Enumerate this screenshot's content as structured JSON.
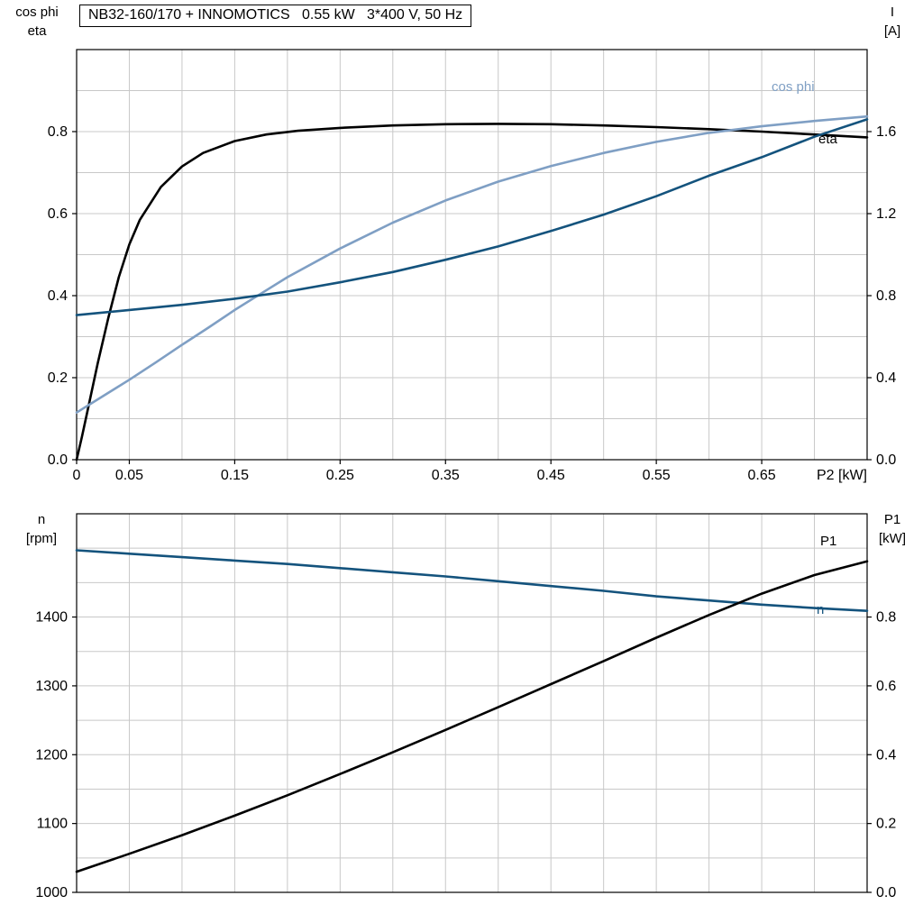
{
  "title": "NB32-160/170 + INNOMOTICS   0.55 kW   3*400 V, 50 Hz",
  "colors": {
    "eta": "#000000",
    "cos_phi": "#7f9fc4",
    "current": "#14537d",
    "speed": "#14537d",
    "p1": "#000000",
    "grid": "#c8c8c8",
    "axis": "#000000"
  },
  "axis_titles": {
    "top_left_line1": "cos phi",
    "top_left_line2": "eta",
    "top_right_line1": "I",
    "top_right_line2": "[A]",
    "bottom_left_line1": "n",
    "bottom_left_line2": "[rpm]",
    "bottom_right_line1": "P1",
    "bottom_right_line2": "[kW]"
  },
  "curve_labels": {
    "cos_phi": "cos phi",
    "eta": "eta",
    "p1": "P1",
    "n": "n"
  },
  "chart_data": [
    {
      "type": "line",
      "title": "NB32-160/170 + INNOMOTICS   0.55 kW   3*400 V, 50 Hz",
      "x": {
        "min": 0,
        "max": 0.75,
        "grid_step": 0.05,
        "label": "P2 [kW]",
        "ticks": [
          [
            "0",
            0
          ],
          [
            "0.05",
            0.05
          ],
          [
            "0.15",
            0.15
          ],
          [
            "0.25",
            0.25
          ],
          [
            "0.35",
            0.35
          ],
          [
            "0.45",
            0.45
          ],
          [
            "0.55",
            0.55
          ],
          [
            "0.65",
            0.65
          ]
        ]
      },
      "y_left": {
        "min": 0,
        "max": 1.0,
        "grid_step": 0.1,
        "label": "cos phi / eta",
        "ticks": [
          [
            "0.0",
            0
          ],
          [
            "0.2",
            0.2
          ],
          [
            "0.4",
            0.4
          ],
          [
            "0.6",
            0.6
          ],
          [
            "0.8",
            0.8
          ]
        ]
      },
      "y_right": {
        "min": 0,
        "max": 2.0,
        "label": "I [A]",
        "ticks": [
          [
            "0.0",
            0
          ],
          [
            "0.4",
            0.4
          ],
          [
            "0.8",
            0.8
          ],
          [
            "1.2",
            1.2
          ],
          [
            "1.6",
            1.6
          ]
        ]
      },
      "series": [
        {
          "name": "eta",
          "axis": "left",
          "color_key": "eta",
          "points": [
            [
              0,
              0
            ],
            [
              0.005,
              0.055
            ],
            [
              0.01,
              0.115
            ],
            [
              0.02,
              0.235
            ],
            [
              0.03,
              0.345
            ],
            [
              0.04,
              0.445
            ],
            [
              0.05,
              0.525
            ],
            [
              0.06,
              0.585
            ],
            [
              0.08,
              0.665
            ],
            [
              0.1,
              0.715
            ],
            [
              0.12,
              0.748
            ],
            [
              0.15,
              0.777
            ],
            [
              0.18,
              0.793
            ],
            [
              0.21,
              0.802
            ],
            [
              0.25,
              0.809
            ],
            [
              0.3,
              0.815
            ],
            [
              0.35,
              0.818
            ],
            [
              0.4,
              0.819
            ],
            [
              0.45,
              0.818
            ],
            [
              0.5,
              0.815
            ],
            [
              0.55,
              0.811
            ],
            [
              0.6,
              0.806
            ],
            [
              0.65,
              0.8
            ],
            [
              0.7,
              0.793
            ],
            [
              0.75,
              0.786
            ]
          ]
        },
        {
          "name": "cos phi",
          "axis": "left",
          "color_key": "cos_phi",
          "points": [
            [
              0,
              0.115
            ],
            [
              0.025,
              0.155
            ],
            [
              0.05,
              0.195
            ],
            [
              0.075,
              0.237
            ],
            [
              0.1,
              0.28
            ],
            [
              0.125,
              0.322
            ],
            [
              0.15,
              0.365
            ],
            [
              0.175,
              0.405
            ],
            [
              0.2,
              0.445
            ],
            [
              0.25,
              0.515
            ],
            [
              0.3,
              0.578
            ],
            [
              0.35,
              0.632
            ],
            [
              0.4,
              0.678
            ],
            [
              0.45,
              0.716
            ],
            [
              0.5,
              0.748
            ],
            [
              0.55,
              0.775
            ],
            [
              0.6,
              0.797
            ],
            [
              0.65,
              0.813
            ],
            [
              0.7,
              0.826
            ],
            [
              0.75,
              0.837
            ]
          ]
        },
        {
          "name": "I",
          "axis": "right",
          "color_key": "current",
          "points": [
            [
              0,
              0.705
            ],
            [
              0.05,
              0.73
            ],
            [
              0.1,
              0.755
            ],
            [
              0.15,
              0.785
            ],
            [
              0.2,
              0.82
            ],
            [
              0.25,
              0.865
            ],
            [
              0.3,
              0.915
            ],
            [
              0.35,
              0.975
            ],
            [
              0.4,
              1.04
            ],
            [
              0.45,
              1.115
            ],
            [
              0.5,
              1.195
            ],
            [
              0.55,
              1.285
            ],
            [
              0.6,
              1.385
            ],
            [
              0.65,
              1.475
            ],
            [
              0.7,
              1.575
            ],
            [
              0.75,
              1.66
            ]
          ]
        }
      ]
    },
    {
      "type": "line",
      "title": "n and P1 vs P2",
      "x": {
        "min": 0,
        "max": 0.75,
        "grid_step": 0.05,
        "label": "",
        "ticks": []
      },
      "y_left": {
        "min": 1000,
        "max": 1550,
        "grid_step": 50,
        "label": "n [rpm]",
        "ticks": [
          [
            "1000",
            1000
          ],
          [
            "1100",
            1100
          ],
          [
            "1200",
            1200
          ],
          [
            "1300",
            1300
          ],
          [
            "1400",
            1400
          ]
        ]
      },
      "y_right": {
        "min": 0,
        "max": 1.1,
        "label": "P1 [kW]",
        "ticks": [
          [
            "0.0",
            0
          ],
          [
            "0.2",
            0.2
          ],
          [
            "0.4",
            0.4
          ],
          [
            "0.6",
            0.6
          ],
          [
            "0.8",
            0.8
          ]
        ]
      },
      "series": [
        {
          "name": "n",
          "axis": "left",
          "color_key": "speed",
          "points": [
            [
              0,
              1497
            ],
            [
              0.05,
              1492
            ],
            [
              0.1,
              1487
            ],
            [
              0.15,
              1482
            ],
            [
              0.2,
              1477
            ],
            [
              0.25,
              1471
            ],
            [
              0.3,
              1465
            ],
            [
              0.35,
              1459
            ],
            [
              0.4,
              1452
            ],
            [
              0.45,
              1445
            ],
            [
              0.5,
              1438
            ],
            [
              0.55,
              1430
            ],
            [
              0.6,
              1424
            ],
            [
              0.65,
              1418
            ],
            [
              0.7,
              1413
            ],
            [
              0.75,
              1409
            ]
          ]
        },
        {
          "name": "P1",
          "axis": "right",
          "color_key": "p1",
          "points": [
            [
              0,
              0.06
            ],
            [
              0.05,
              0.112
            ],
            [
              0.1,
              0.166
            ],
            [
              0.15,
              0.223
            ],
            [
              0.2,
              0.282
            ],
            [
              0.25,
              0.344
            ],
            [
              0.3,
              0.407
            ],
            [
              0.35,
              0.472
            ],
            [
              0.4,
              0.538
            ],
            [
              0.45,
              0.605
            ],
            [
              0.5,
              0.672
            ],
            [
              0.55,
              0.74
            ],
            [
              0.6,
              0.806
            ],
            [
              0.65,
              0.868
            ],
            [
              0.7,
              0.922
            ],
            [
              0.75,
              0.962
            ]
          ]
        }
      ]
    }
  ]
}
